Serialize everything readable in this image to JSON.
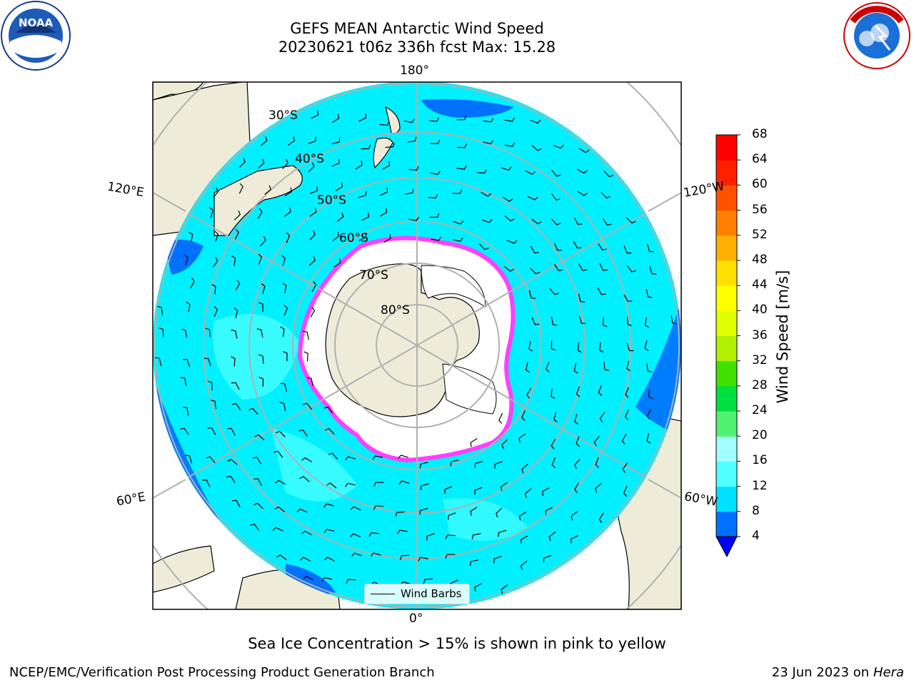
{
  "title": {
    "line1": "GEFS MEAN Antarctic Wind Speed",
    "line2": "20230621 t06z 336h fcst   Max: 15.28"
  },
  "longitude_labels": [
    "180°",
    "120°E",
    "120°W",
    "60°E",
    "60°W",
    "0°"
  ],
  "latitude_labels": [
    "30°S",
    "40°S",
    "50°S",
    "60°S",
    "70°S",
    "80°S"
  ],
  "legend": {
    "label": "Wind Barbs"
  },
  "colorbar": {
    "title": "Wind Speed [m/s]",
    "ticks": [
      "4",
      "8",
      "12",
      "16",
      "20",
      "24",
      "28",
      "32",
      "36",
      "40",
      "44",
      "48",
      "52",
      "56",
      "60",
      "64",
      "68"
    ],
    "colors": [
      "#0000ff",
      "#0070ff",
      "#00e0ff",
      "#50ffff",
      "#a0ffff",
      "#50f070",
      "#00e040",
      "#40e000",
      "#b0f000",
      "#e0ff00",
      "#ffff00",
      "#ffe000",
      "#ffb000",
      "#ff8000",
      "#ff5000",
      "#ff2000",
      "#ff0000"
    ]
  },
  "caption": "Sea Ice Concentration > 15% is shown in pink to yellow",
  "footer": {
    "left": "NCEP/EMC/Verification Post Processing Product Generation Branch",
    "right_date": "23 Jun 2023 on",
    "right_host": "Hera"
  },
  "logos": {
    "left": "NOAA",
    "right": "NATIONAL WEATHER SERVICE"
  },
  "colors": {
    "ocean": "#00f0ff",
    "land": "#eeecd9",
    "ice": "#ffffff",
    "ice_edge": "#ff40ff",
    "gridline": "#b0b0b0"
  }
}
